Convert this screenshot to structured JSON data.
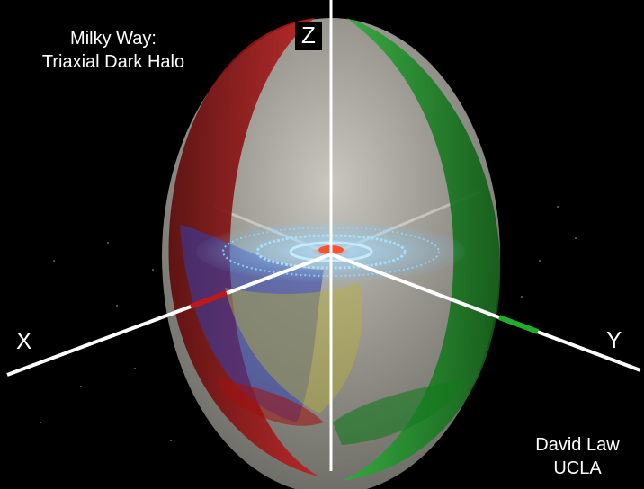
{
  "title": {
    "line1": "Milky Way:",
    "line2": "Triaxial Dark Halo"
  },
  "credit": {
    "author": "David Law",
    "institution": "UCLA"
  },
  "axes": {
    "x": "X",
    "y": "Y",
    "z": "Z"
  },
  "colors": {
    "background": "#000000",
    "x_shell": "#b01818",
    "y_shell": "#1f9a2a",
    "z_shell": "#c9c6bc",
    "inner_blue": "#2f3fb0",
    "inner_yellow": "#b9b23a",
    "disk": "#7fc8ff",
    "axis_line": "#ffffff"
  }
}
